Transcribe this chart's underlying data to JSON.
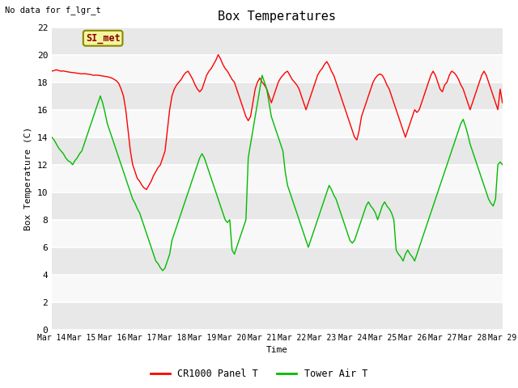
{
  "title": "Box Temperatures",
  "xlabel": "Time",
  "ylabel": "Box Temperature (C)",
  "top_left_text": "No data for f_lgr_t",
  "annotation_text": "SI_met",
  "ylim": [
    0,
    22
  ],
  "yticks": [
    0,
    2,
    4,
    6,
    8,
    10,
    12,
    14,
    16,
    18,
    20,
    22
  ],
  "xtick_labels": [
    "Mar 14",
    "Mar 15",
    "Mar 16",
    "Mar 17",
    "Mar 18",
    "Mar 19",
    "Mar 20",
    "Mar 21",
    "Mar 22",
    "Mar 23",
    "Mar 24",
    "Mar 25",
    "Mar 26",
    "Mar 27",
    "Mar 28",
    "Mar 29"
  ],
  "legend_entries": [
    "CR1000 Panel T",
    "Tower Air T"
  ],
  "line_colors": [
    "#ff0000",
    "#00bb00"
  ],
  "background_color": "#ffffff",
  "plot_bg_light": "#f0f0f0",
  "plot_bg_dark": "#e0e0e0",
  "font_family": "monospace",
  "red_line": [
    18.8,
    18.85,
    18.9,
    18.85,
    18.8,
    18.82,
    18.78,
    18.75,
    18.72,
    18.7,
    18.68,
    18.65,
    18.63,
    18.6,
    18.62,
    18.6,
    18.58,
    18.55,
    18.5,
    18.52,
    18.5,
    18.48,
    18.45,
    18.42,
    18.4,
    18.35,
    18.3,
    18.2,
    18.1,
    17.9,
    17.5,
    17.0,
    16.0,
    14.5,
    13.0,
    12.0,
    11.5,
    11.0,
    10.8,
    10.5,
    10.3,
    10.2,
    10.5,
    10.8,
    11.2,
    11.5,
    11.8,
    12.0,
    12.5,
    13.0,
    14.5,
    16.0,
    17.0,
    17.5,
    17.8,
    18.0,
    18.2,
    18.5,
    18.7,
    18.8,
    18.5,
    18.2,
    17.8,
    17.5,
    17.3,
    17.5,
    18.0,
    18.5,
    18.8,
    19.0,
    19.3,
    19.6,
    20.0,
    19.7,
    19.3,
    19.0,
    18.8,
    18.5,
    18.2,
    18.0,
    17.5,
    17.0,
    16.5,
    16.0,
    15.5,
    15.2,
    15.5,
    16.5,
    17.5,
    18.0,
    18.3,
    18.0,
    17.8,
    17.5,
    17.0,
    16.5,
    17.0,
    17.5,
    18.0,
    18.3,
    18.5,
    18.7,
    18.8,
    18.5,
    18.2,
    18.0,
    17.8,
    17.5,
    17.0,
    16.5,
    16.0,
    16.5,
    17.0,
    17.5,
    18.0,
    18.5,
    18.8,
    19.0,
    19.3,
    19.5,
    19.2,
    18.8,
    18.5,
    18.0,
    17.5,
    17.0,
    16.5,
    16.0,
    15.5,
    15.0,
    14.5,
    14.0,
    13.8,
    14.5,
    15.5,
    16.0,
    16.5,
    17.0,
    17.5,
    18.0,
    18.3,
    18.5,
    18.6,
    18.5,
    18.2,
    17.8,
    17.5,
    17.0,
    16.5,
    16.0,
    15.5,
    15.0,
    14.5,
    14.0,
    14.5,
    15.0,
    15.5,
    16.0,
    15.8,
    16.0,
    16.5,
    17.0,
    17.5,
    18.0,
    18.5,
    18.8,
    18.5,
    18.0,
    17.5,
    17.3,
    17.8,
    18.0,
    18.5,
    18.8,
    18.7,
    18.5,
    18.2,
    17.8,
    17.5,
    17.0,
    16.5,
    16.0,
    16.5,
    17.0,
    17.5,
    18.0,
    18.5,
    18.8,
    18.5,
    18.0,
    17.5,
    17.0,
    16.5,
    16.0,
    17.5,
    16.5
  ],
  "green_line": [
    14.0,
    13.8,
    13.5,
    13.2,
    13.0,
    12.8,
    12.5,
    12.3,
    12.2,
    12.0,
    12.3,
    12.5,
    12.8,
    13.0,
    13.5,
    14.0,
    14.5,
    15.0,
    15.5,
    16.0,
    16.5,
    17.0,
    16.5,
    15.8,
    15.0,
    14.5,
    14.0,
    13.5,
    13.0,
    12.5,
    12.0,
    11.5,
    11.0,
    10.5,
    10.0,
    9.5,
    9.2,
    8.8,
    8.5,
    8.0,
    7.5,
    7.0,
    6.5,
    6.0,
    5.5,
    5.0,
    4.8,
    4.5,
    4.3,
    4.5,
    5.0,
    5.5,
    6.5,
    7.0,
    7.5,
    8.0,
    8.5,
    9.0,
    9.5,
    10.0,
    10.5,
    11.0,
    11.5,
    12.0,
    12.5,
    12.8,
    12.5,
    12.0,
    11.5,
    11.0,
    10.5,
    10.0,
    9.5,
    9.0,
    8.5,
    8.0,
    7.8,
    8.0,
    5.8,
    5.5,
    6.0,
    6.5,
    7.0,
    7.5,
    8.0,
    12.5,
    13.5,
    14.5,
    15.5,
    16.5,
    17.5,
    18.5,
    18.0,
    17.5,
    16.5,
    15.5,
    15.0,
    14.5,
    14.0,
    13.5,
    13.0,
    11.5,
    10.5,
    10.0,
    9.5,
    9.0,
    8.5,
    8.0,
    7.5,
    7.0,
    6.5,
    6.0,
    6.5,
    7.0,
    7.5,
    8.0,
    8.5,
    9.0,
    9.5,
    10.0,
    10.5,
    10.2,
    9.8,
    9.5,
    9.0,
    8.5,
    8.0,
    7.5,
    7.0,
    6.5,
    6.3,
    6.5,
    7.0,
    7.5,
    8.0,
    8.5,
    9.0,
    9.3,
    9.0,
    8.8,
    8.5,
    8.0,
    8.5,
    9.0,
    9.3,
    9.0,
    8.8,
    8.5,
    8.0,
    5.8,
    5.5,
    5.3,
    5.0,
    5.5,
    5.8,
    5.5,
    5.3,
    5.0,
    5.5,
    6.0,
    6.5,
    7.0,
    7.5,
    8.0,
    8.5,
    9.0,
    9.5,
    10.0,
    10.5,
    11.0,
    11.5,
    12.0,
    12.5,
    13.0,
    13.5,
    14.0,
    14.5,
    15.0,
    15.3,
    14.8,
    14.2,
    13.5,
    13.0,
    12.5,
    12.0,
    11.5,
    11.0,
    10.5,
    10.0,
    9.5,
    9.2,
    9.0,
    9.5,
    12.0,
    12.2,
    12.0
  ]
}
